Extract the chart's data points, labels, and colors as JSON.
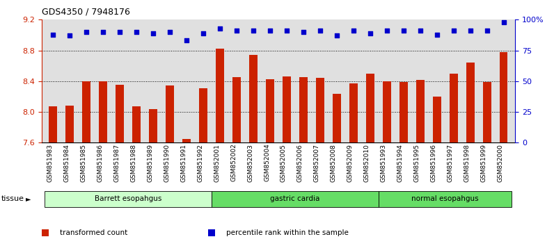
{
  "title": "GDS4350 / 7948176",
  "samples": [
    "GSM851983",
    "GSM851984",
    "GSM851985",
    "GSM851986",
    "GSM851987",
    "GSM851988",
    "GSM851989",
    "GSM851990",
    "GSM851991",
    "GSM851992",
    "GSM852001",
    "GSM852002",
    "GSM852003",
    "GSM852004",
    "GSM852005",
    "GSM852006",
    "GSM852007",
    "GSM852008",
    "GSM852009",
    "GSM852010",
    "GSM851993",
    "GSM851994",
    "GSM851995",
    "GSM851996",
    "GSM851997",
    "GSM851998",
    "GSM851999",
    "GSM852000"
  ],
  "bar_values": [
    8.07,
    8.08,
    8.4,
    8.4,
    8.35,
    8.07,
    8.04,
    8.34,
    7.65,
    8.31,
    8.82,
    8.45,
    8.74,
    8.43,
    8.46,
    8.45,
    8.44,
    8.24,
    8.37,
    8.5,
    8.4,
    8.39,
    8.42,
    8.2,
    8.5,
    8.64,
    8.39,
    8.78
  ],
  "percentile_values": [
    88,
    87,
    90,
    90,
    90,
    90,
    89,
    90,
    83,
    89,
    93,
    91,
    91,
    91,
    91,
    90,
    91,
    87,
    91,
    89,
    91,
    91,
    91,
    88,
    91,
    91,
    91,
    98
  ],
  "bar_color": "#cc2200",
  "percentile_color": "#0000cc",
  "ylim_left": [
    7.6,
    9.2
  ],
  "ylim_right": [
    0,
    100
  ],
  "yticks_left": [
    7.6,
    8.0,
    8.4,
    8.8,
    9.2
  ],
  "yticks_right": [
    0,
    25,
    50,
    75,
    100
  ],
  "ytick_labels_right": [
    "0",
    "25",
    "50",
    "75",
    "100%"
  ],
  "groups": [
    {
      "label": "Barrett esopahgus",
      "start": 0,
      "end": 10,
      "color": "#ccffcc"
    },
    {
      "label": "gastric cardia",
      "start": 10,
      "end": 20,
      "color": "#66dd66"
    },
    {
      "label": "normal esopahgus",
      "start": 20,
      "end": 28,
      "color": "#66dd66"
    }
  ],
  "tissue_label": "tissue",
  "legend_items": [
    {
      "color": "#cc2200",
      "label": "transformed count"
    },
    {
      "color": "#0000cc",
      "label": "percentile rank within the sample"
    }
  ],
  "plot_bg_color": "#e0e0e0",
  "bar_width": 0.5,
  "grid_yticks": [
    8.0,
    8.4,
    8.8
  ]
}
